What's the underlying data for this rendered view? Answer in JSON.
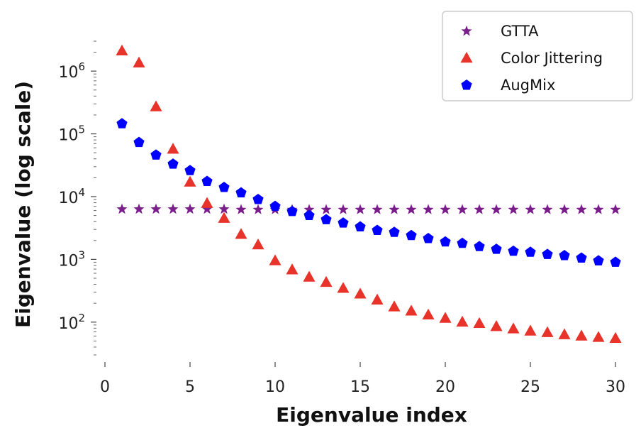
{
  "chart_data": {
    "type": "scatter",
    "title": "",
    "xlabel": "Eigenvalue index",
    "ylabel": "Eigenvalue (log scale)",
    "yscale": "log",
    "xlim": [
      -0.5,
      30.5
    ],
    "ylim": [
      30,
      3000000
    ],
    "grid": false,
    "legend_position": "top-right",
    "x_ticks": [
      0,
      5,
      10,
      15,
      20,
      25,
      30
    ],
    "x_tick_labels": [
      "0",
      "5",
      "10",
      "15",
      "20",
      "25",
      "30"
    ],
    "y_ticks": [
      100,
      1000,
      10000,
      100000,
      1000000
    ],
    "y_tick_labels": [
      {
        "base": "10",
        "exp": "2"
      },
      {
        "base": "10",
        "exp": "3"
      },
      {
        "base": "10",
        "exp": "4"
      },
      {
        "base": "10",
        "exp": "5"
      },
      {
        "base": "10",
        "exp": "6"
      }
    ],
    "x": [
      1,
      2,
      3,
      4,
      5,
      6,
      7,
      8,
      9,
      10,
      11,
      12,
      13,
      14,
      15,
      16,
      17,
      18,
      19,
      20,
      21,
      22,
      23,
      24,
      25,
      26,
      27,
      28,
      29,
      30
    ],
    "series": [
      {
        "name": "GTTA",
        "color": "#7b1e8c",
        "marker": "star",
        "values": [
          6300,
          6300,
          6300,
          6300,
          6300,
          6300,
          6300,
          6200,
          6200,
          6200,
          6200,
          6200,
          6200,
          6200,
          6200,
          6200,
          6200,
          6200,
          6200,
          6200,
          6200,
          6200,
          6200,
          6200,
          6200,
          6200,
          6200,
          6200,
          6200,
          6200
        ]
      },
      {
        "name": "Color Jittering",
        "color": "#e8332a",
        "marker": "triangle",
        "values": [
          2100000,
          1350000,
          270000,
          57000,
          17000,
          7800,
          4500,
          2500,
          1700,
          950,
          680,
          520,
          430,
          345,
          280,
          225,
          175,
          150,
          130,
          115,
          100,
          95,
          85,
          78,
          72,
          68,
          63,
          60,
          57,
          55
        ]
      },
      {
        "name": "AugMix",
        "color": "#0000ff",
        "marker": "pentagon",
        "values": [
          145000,
          73000,
          46000,
          33000,
          26000,
          17500,
          14000,
          11500,
          9000,
          7000,
          5800,
          5000,
          4300,
          3800,
          3300,
          2900,
          2700,
          2400,
          2150,
          1900,
          1800,
          1600,
          1450,
          1350,
          1300,
          1200,
          1150,
          1050,
          950,
          900
        ]
      }
    ]
  }
}
